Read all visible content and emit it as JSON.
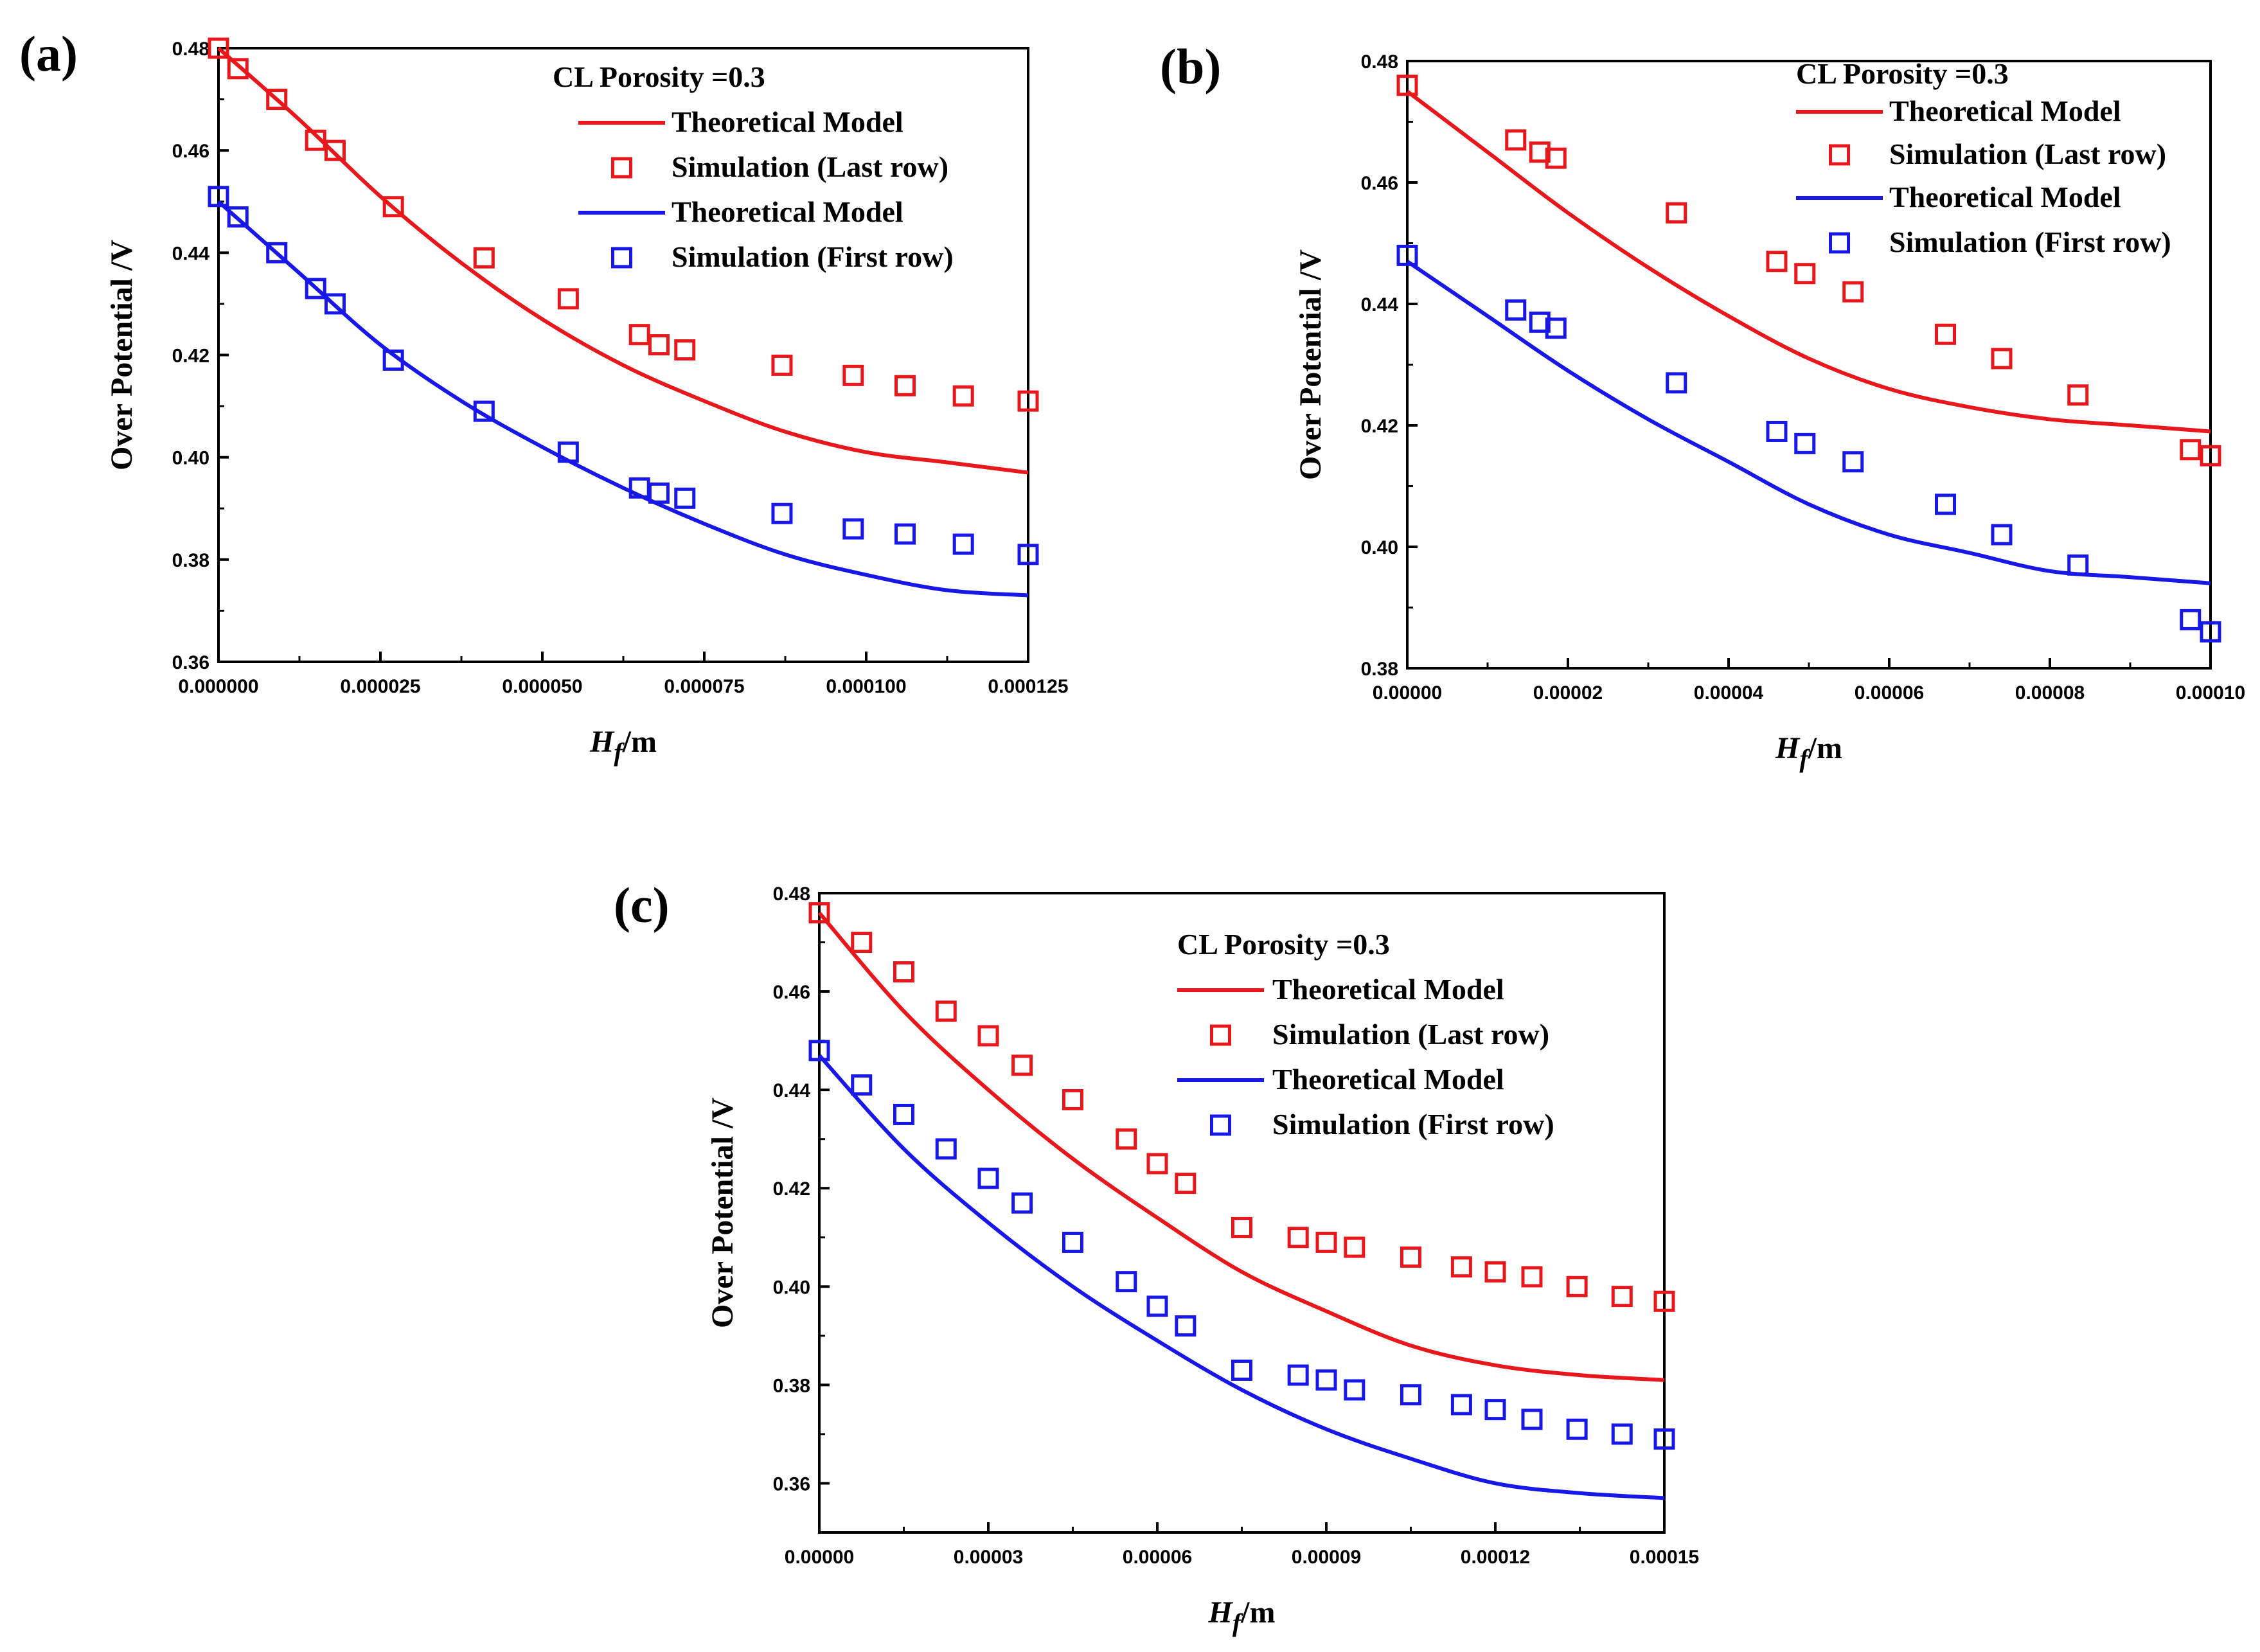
{
  "chart_data": [
    {
      "type": "line",
      "panel_label": "(a)",
      "legend_title": "CL Porosity =0.3",
      "xlabel_main": "H",
      "xlabel_sub": "f",
      "xlabel_unit": "/m",
      "ylabel": "Over Potential /V",
      "xlim": [
        0,
        0.000125
      ],
      "ylim": [
        0.36,
        0.48
      ],
      "x_ticks": [
        0,
        2.5e-05,
        5e-05,
        7.5e-05,
        0.0001,
        0.000125
      ],
      "x_tick_labels": [
        "0.000000",
        "0.000025",
        "0.000050",
        "0.000075",
        "0.000100",
        "0.000125"
      ],
      "y_ticks": [
        0.36,
        0.38,
        0.4,
        0.42,
        0.44,
        0.46,
        0.48
      ],
      "y_tick_labels": [
        "0.36",
        "0.38",
        "0.40",
        "0.42",
        "0.44",
        "0.46",
        "0.48"
      ],
      "series": [
        {
          "name": "Theoretical Model",
          "kind": "line",
          "color": "#e8171b",
          "x": [
            0,
            1.25e-05,
            2.5e-05,
            3.75e-05,
            5e-05,
            6.25e-05,
            7.5e-05,
            8.75e-05,
            0.0001,
            0.0001125,
            0.000125
          ],
          "y": [
            0.48,
            0.466,
            0.451,
            0.438,
            0.427,
            0.418,
            0.411,
            0.405,
            0.401,
            0.399,
            0.397
          ]
        },
        {
          "name": "Simulation (Last row)",
          "kind": "scatter",
          "color": "#e8171b",
          "x": [
            0,
            3e-06,
            9e-06,
            1.5e-05,
            1.8e-05,
            2.7e-05,
            4.1e-05,
            5.4e-05,
            6.5e-05,
            6.8e-05,
            7.2e-05,
            8.7e-05,
            9.8e-05,
            0.000106,
            0.000115,
            0.000125
          ],
          "y": [
            0.48,
            0.476,
            0.47,
            0.462,
            0.46,
            0.449,
            0.439,
            0.431,
            0.424,
            0.422,
            0.421,
            0.418,
            0.416,
            0.414,
            0.412,
            0.411
          ]
        },
        {
          "name": "Theoretical Model",
          "kind": "line",
          "color": "#1717e8",
          "x": [
            0,
            1.25e-05,
            2.5e-05,
            3.75e-05,
            5e-05,
            6.25e-05,
            7.5e-05,
            8.75e-05,
            0.0001,
            0.0001125,
            0.000125
          ],
          "y": [
            0.45,
            0.436,
            0.422,
            0.411,
            0.402,
            0.394,
            0.387,
            0.381,
            0.377,
            0.374,
            0.373
          ]
        },
        {
          "name": "Simulation (First row)",
          "kind": "scatter",
          "color": "#1717e8",
          "x": [
            0,
            3e-06,
            9e-06,
            1.5e-05,
            1.8e-05,
            2.7e-05,
            4.1e-05,
            5.4e-05,
            6.5e-05,
            6.8e-05,
            7.2e-05,
            8.7e-05,
            9.8e-05,
            0.000106,
            0.000115,
            0.000125
          ],
          "y": [
            0.451,
            0.447,
            0.44,
            0.433,
            0.43,
            0.419,
            0.409,
            0.401,
            0.394,
            0.393,
            0.392,
            0.389,
            0.386,
            0.385,
            0.383,
            0.381
          ]
        }
      ]
    },
    {
      "type": "line",
      "panel_label": "(b)",
      "legend_title": "CL Porosity =0.3",
      "xlabel_main": "H",
      "xlabel_sub": "f",
      "xlabel_unit": "/m",
      "ylabel": "Over Potential /V",
      "xlim": [
        0,
        0.0001
      ],
      "ylim": [
        0.38,
        0.48
      ],
      "x_ticks": [
        0,
        2e-05,
        4e-05,
        6e-05,
        8e-05,
        0.0001
      ],
      "x_tick_labels": [
        "0.00000",
        "0.00002",
        "0.00004",
        "0.00006",
        "0.00008",
        "0.00010"
      ],
      "y_ticks": [
        0.38,
        0.4,
        0.42,
        0.44,
        0.46,
        0.48
      ],
      "y_tick_labels": [
        "0.38",
        "0.40",
        "0.42",
        "0.44",
        "0.46",
        "0.48"
      ],
      "series": [
        {
          "name": "Theoretical Model",
          "kind": "line",
          "color": "#e8171b",
          "x": [
            0,
            1e-05,
            2e-05,
            3e-05,
            4e-05,
            5e-05,
            6e-05,
            7e-05,
            8e-05,
            9e-05,
            0.0001
          ],
          "y": [
            0.475,
            0.465,
            0.455,
            0.446,
            0.438,
            0.431,
            0.426,
            0.423,
            0.421,
            0.42,
            0.419
          ]
        },
        {
          "name": "Simulation (Last row)",
          "kind": "scatter",
          "color": "#e8171b",
          "x": [
            0,
            1.35e-05,
            1.65e-05,
            1.85e-05,
            3.35e-05,
            4.6e-05,
            4.95e-05,
            5.55e-05,
            6.7e-05,
            7.4e-05,
            8.35e-05,
            9.75e-05,
            0.0001
          ],
          "y": [
            0.476,
            0.467,
            0.465,
            0.464,
            0.455,
            0.447,
            0.445,
            0.442,
            0.435,
            0.431,
            0.425,
            0.416,
            0.415
          ]
        },
        {
          "name": "Theoretical Model",
          "kind": "line",
          "color": "#1717e8",
          "x": [
            0,
            1e-05,
            2e-05,
            3e-05,
            4e-05,
            5e-05,
            6e-05,
            7e-05,
            8e-05,
            9e-05,
            0.0001
          ],
          "y": [
            0.447,
            0.438,
            0.429,
            0.421,
            0.414,
            0.407,
            0.402,
            0.399,
            0.396,
            0.395,
            0.394
          ]
        },
        {
          "name": "Simulation (First row)",
          "kind": "scatter",
          "color": "#1717e8",
          "x": [
            0,
            1.35e-05,
            1.65e-05,
            1.85e-05,
            3.35e-05,
            4.6e-05,
            4.95e-05,
            5.55e-05,
            6.7e-05,
            7.4e-05,
            8.35e-05,
            9.75e-05,
            0.0001
          ],
          "y": [
            0.448,
            0.439,
            0.437,
            0.436,
            0.427,
            0.419,
            0.417,
            0.414,
            0.407,
            0.402,
            0.397,
            0.388,
            0.386
          ]
        }
      ]
    },
    {
      "type": "line",
      "panel_label": "(c)",
      "legend_title": "CL Porosity =0.3",
      "xlabel_main": "H",
      "xlabel_sub": "f",
      "xlabel_unit": "/m",
      "ylabel": "Over Potential /V",
      "xlim": [
        0,
        0.00015
      ],
      "ylim": [
        0.35,
        0.48
      ],
      "x_ticks": [
        0,
        3e-05,
        6e-05,
        9e-05,
        0.00012,
        0.00015
      ],
      "x_tick_labels": [
        "0.00000",
        "0.00003",
        "0.00006",
        "0.00009",
        "0.00012",
        "0.00015"
      ],
      "y_ticks": [
        0.36,
        0.38,
        0.4,
        0.42,
        0.44,
        0.46,
        0.48
      ],
      "y_tick_labels": [
        "0.36",
        "0.38",
        "0.40",
        "0.42",
        "0.44",
        "0.46",
        "0.48"
      ],
      "series": [
        {
          "name": "Theoretical Model",
          "kind": "line",
          "color": "#e8171b",
          "x": [
            0,
            1.5e-05,
            3e-05,
            4.5e-05,
            6e-05,
            7.5e-05,
            9e-05,
            0.000105,
            0.00012,
            0.000135,
            0.00015
          ],
          "y": [
            0.476,
            0.456,
            0.44,
            0.426,
            0.414,
            0.403,
            0.395,
            0.388,
            0.384,
            0.382,
            0.381
          ]
        },
        {
          "name": "Simulation (Last row)",
          "kind": "scatter",
          "color": "#e8171b",
          "x": [
            0,
            7.5e-06,
            1.5e-05,
            2.25e-05,
            3e-05,
            3.6e-05,
            4.5e-05,
            5.45e-05,
            6e-05,
            6.5e-05,
            7.5e-05,
            8.5e-05,
            9e-05,
            9.5e-05,
            0.000105,
            0.000114,
            0.00012,
            0.0001265,
            0.0001345,
            0.0001425,
            0.00015
          ],
          "y": [
            0.476,
            0.47,
            0.464,
            0.456,
            0.451,
            0.445,
            0.438,
            0.43,
            0.425,
            0.421,
            0.412,
            0.41,
            0.409,
            0.408,
            0.406,
            0.404,
            0.403,
            0.402,
            0.4,
            0.398,
            0.397
          ]
        },
        {
          "name": "Theoretical Model",
          "kind": "line",
          "color": "#1717e8",
          "x": [
            0,
            1.5e-05,
            3e-05,
            4.5e-05,
            6e-05,
            7.5e-05,
            9e-05,
            0.000105,
            0.00012,
            0.000135,
            0.00015
          ],
          "y": [
            0.447,
            0.428,
            0.413,
            0.4,
            0.389,
            0.379,
            0.371,
            0.365,
            0.36,
            0.358,
            0.357
          ]
        },
        {
          "name": "Simulation (First row)",
          "kind": "scatter",
          "color": "#1717e8",
          "x": [
            0,
            7.5e-06,
            1.5e-05,
            2.25e-05,
            3e-05,
            3.6e-05,
            4.5e-05,
            5.45e-05,
            6e-05,
            6.5e-05,
            7.5e-05,
            8.5e-05,
            9e-05,
            9.5e-05,
            0.000105,
            0.000114,
            0.00012,
            0.0001265,
            0.0001345,
            0.0001425,
            0.00015
          ],
          "y": [
            0.448,
            0.441,
            0.435,
            0.428,
            0.422,
            0.417,
            0.409,
            0.401,
            0.396,
            0.392,
            0.383,
            0.382,
            0.381,
            0.379,
            0.378,
            0.376,
            0.375,
            0.373,
            0.371,
            0.37,
            0.369
          ]
        }
      ]
    }
  ]
}
